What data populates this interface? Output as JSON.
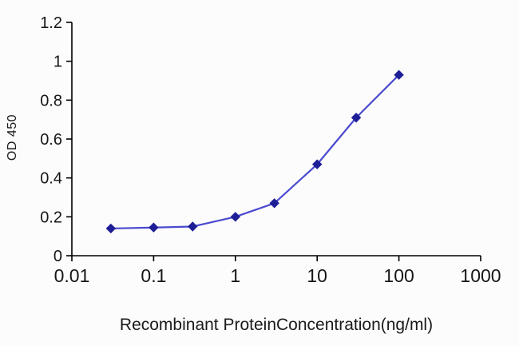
{
  "chart_data": {
    "type": "line",
    "title": "",
    "xlabel": "Recombinant ProteinConcentration(ng/ml)",
    "ylabel": "OD 450",
    "x_scale": "log",
    "xlim": [
      0.01,
      1000
    ],
    "ylim": [
      0,
      1.2
    ],
    "xticks": [
      "0.01",
      "0.1",
      "1",
      "10",
      "100",
      "1000"
    ],
    "yticks": [
      "0",
      "0.2",
      "0.4",
      "0.6",
      "0.8",
      "1",
      "1.2"
    ],
    "grid": false,
    "legend": "none",
    "marker": "diamond",
    "line_color": "#4a4ad0",
    "marker_color": "#1e1e96",
    "axis_color": "#000000",
    "x": [
      0.03,
      0.1,
      0.3,
      1,
      3,
      10,
      30,
      100
    ],
    "series": [
      {
        "name": "OD450",
        "values": [
          0.14,
          0.145,
          0.15,
          0.2,
          0.27,
          0.47,
          0.71,
          0.93
        ]
      }
    ]
  }
}
